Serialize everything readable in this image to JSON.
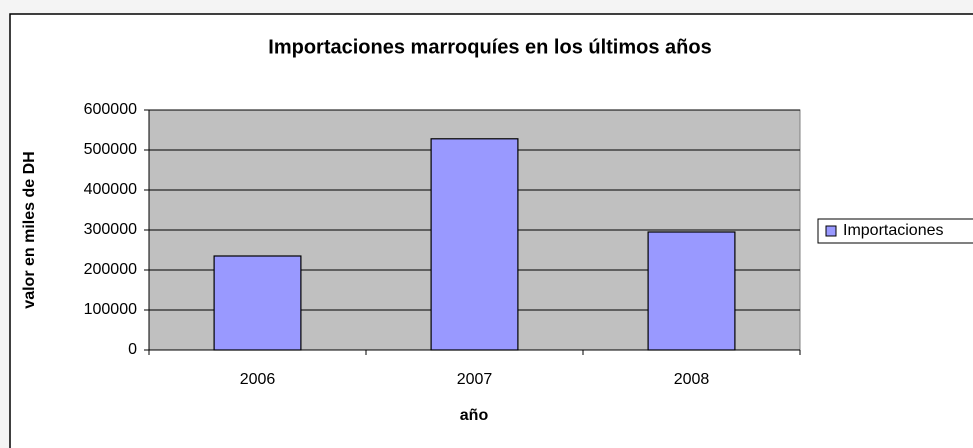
{
  "chart_data": {
    "type": "bar",
    "title": "Importaciones marroquíes en los últimos años",
    "x_label": "año",
    "y_label": "valor en miles de DH",
    "categories": [
      "2006",
      "2007",
      "2008"
    ],
    "series": [
      {
        "name": "Importaciones",
        "color": "#9999ff",
        "values": [
          235000,
          528000,
          295000
        ]
      }
    ],
    "ylim": [
      0,
      600000
    ],
    "yticks": [
      0,
      100000,
      200000,
      300000,
      400000,
      500000,
      600000
    ],
    "grid": true,
    "legend": "right"
  }
}
